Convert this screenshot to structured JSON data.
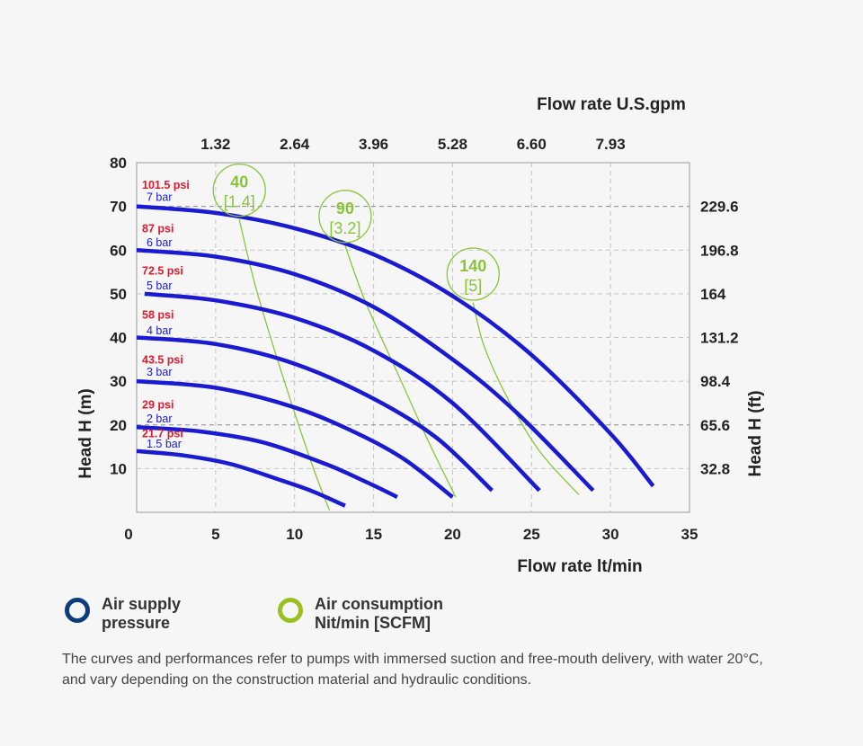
{
  "colors": {
    "background": "#f6f6f6",
    "pressure_curve": "#1a1ad0",
    "air_curve": "#8ac43a",
    "psi_label": "#e0192e",
    "bar_label": "#1a1ad0",
    "legend_pressure_ring": "#0c3c7c",
    "legend_air_ring": "#9bbf1f"
  },
  "chart_data": {
    "type": "line",
    "title": "",
    "xlabel": "Flow rate lt/min",
    "x2label": "Flow rate U.S.gpm",
    "ylabel": "Head H (m)",
    "y2label": "Head H (ft)",
    "xlim": [
      0,
      35
    ],
    "ylim": [
      0,
      80
    ],
    "grid": true,
    "x_ticks": [
      "0",
      "5",
      "10",
      "15",
      "20",
      "25",
      "30",
      "35"
    ],
    "y_ticks": [
      "10",
      "20",
      "30",
      "40",
      "50",
      "60",
      "70",
      "80"
    ],
    "x2_ticks": [
      {
        "label": "1.32",
        "at": 5
      },
      {
        "label": "2.64",
        "at": 10
      },
      {
        "label": "3.96",
        "at": 15
      },
      {
        "label": "5.28",
        "at": 20
      },
      {
        "label": "6.60",
        "at": 25
      },
      {
        "label": "7.93",
        "at": 30
      }
    ],
    "y2_ticks": [
      {
        "label": "229.6",
        "at": 70
      },
      {
        "label": "196.8",
        "at": 60
      },
      {
        "label": "164",
        "at": 50
      },
      {
        "label": "131.2",
        "at": 40
      },
      {
        "label": "98.4",
        "at": 30
      },
      {
        "label": "65.6",
        "at": 20
      },
      {
        "label": "32.8",
        "at": 10
      }
    ],
    "series": [
      {
        "group": "pressure",
        "psi": "21.7 psi",
        "bar": "1.5 bar",
        "x": [
          0,
          3,
          6,
          9,
          11,
          13.2
        ],
        "y": [
          14,
          13,
          11,
          7.5,
          5,
          1.5
        ]
      },
      {
        "group": "pressure",
        "psi": "29 psi",
        "bar": "2 bar",
        "x": [
          0,
          4,
          8,
          12,
          14.5,
          16.5
        ],
        "y": [
          19.5,
          18.5,
          16,
          11,
          7,
          3.5
        ]
      },
      {
        "group": "pressure",
        "psi": "43.5 psi",
        "bar": "3 bar",
        "x": [
          0,
          5,
          10,
          14,
          17,
          20
        ],
        "y": [
          30,
          28.5,
          24,
          18,
          12,
          3.5
        ]
      },
      {
        "group": "pressure",
        "psi": "58 psi",
        "bar": "4 bar",
        "x": [
          0,
          5,
          10,
          15,
          19,
          22.5
        ],
        "y": [
          40,
          38.5,
          34,
          26,
          17,
          5
        ]
      },
      {
        "group": "pressure",
        "psi": "72.5 psi",
        "bar": "5 bar",
        "x": [
          0.5,
          5,
          10,
          15,
          20,
          25.5
        ],
        "y": [
          50,
          48.5,
          44.5,
          37,
          25,
          5
        ]
      },
      {
        "group": "pressure",
        "psi": "87 psi",
        "bar": "6 bar",
        "x": [
          0,
          5,
          10,
          15,
          20,
          24,
          28.9
        ],
        "y": [
          60,
          58.5,
          54.5,
          47,
          35,
          23,
          5
        ]
      },
      {
        "group": "pressure",
        "psi": "101.5 psi",
        "bar": "7 bar",
        "x": [
          0,
          5,
          10,
          15,
          20,
          25,
          30,
          32.7
        ],
        "y": [
          70,
          68.5,
          65,
          59,
          49.5,
          36,
          18,
          6
        ]
      },
      {
        "group": "air",
        "label": "40",
        "sub": "[1.4]",
        "x": [
          6.5,
          7.5,
          9,
          11,
          12.2
        ],
        "y": [
          67,
          52,
          34,
          12,
          0.5
        ]
      },
      {
        "group": "air",
        "label": "90",
        "sub": "[3.2]",
        "x": [
          13.2,
          14.5,
          16.5,
          18.5,
          20.2
        ],
        "y": [
          61,
          48,
          32,
          16,
          3.5
        ]
      },
      {
        "group": "air",
        "label": "140",
        "sub": "[5]",
        "x": [
          21.3,
          22,
          23.5,
          25.5,
          28
        ],
        "y": [
          48,
          38,
          26,
          14,
          4
        ]
      }
    ],
    "air_bubbles": [
      {
        "x": 6.5,
        "y": 73.7
      },
      {
        "x": 13.2,
        "y": 67.7
      },
      {
        "x": 21.3,
        "y": 54.5
      }
    ],
    "pressure_label_rows": [
      74.9,
      72.1,
      64.9,
      61.7,
      55.2,
      51.8,
      45.1,
      41.5,
      34.9,
      32.1,
      24.6,
      21.4,
      18.0,
      15.6
    ]
  },
  "legend": {
    "pressure_line1": "Air supply",
    "pressure_line2": "pressure",
    "air_line1": "Air consumption",
    "air_line2": "Nit/min [SCFM]"
  },
  "note": "The curves and performances refer to pumps with immersed suction and free-mouth delivery, with water 20°C, and vary depending on the construction material and hydraulic conditions."
}
